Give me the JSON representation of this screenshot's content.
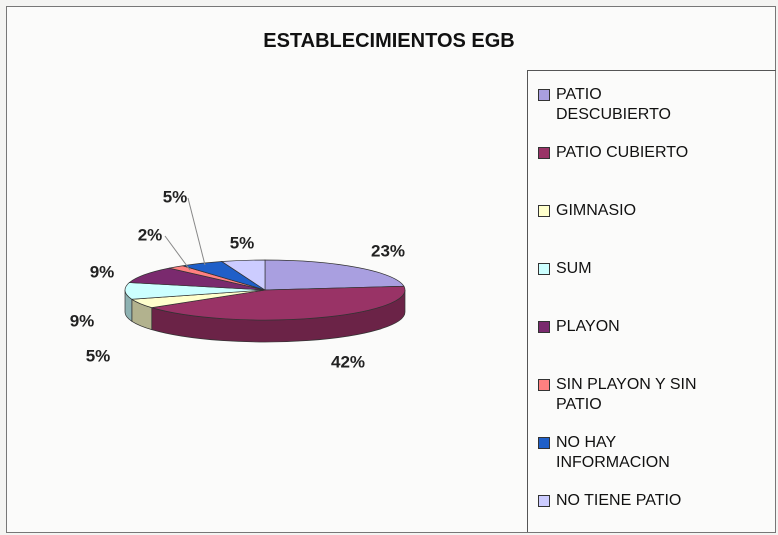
{
  "chart_data": {
    "type": "pie3d",
    "title": "ESTABLECIMIENTOS EGB",
    "categories": [
      "PATIO DESCUBIERTO",
      "PATIO CUBIERTO",
      "GIMNASIO",
      "SUM",
      "PLAYON",
      "SIN PLAYON Y SIN PATIO",
      "NO HAY INFORMACION",
      "NO TIENE PATIO"
    ],
    "values": [
      23,
      42,
      5,
      9,
      9,
      2,
      5,
      5
    ],
    "value_labels": [
      "23%",
      "42%",
      "5%",
      "9%",
      "9%",
      "2%",
      "5%",
      "5%"
    ],
    "colors": [
      "#a99fe0",
      "#993366",
      "#ffffcc",
      "#ccffff",
      "#7a2a6e",
      "#ff8080",
      "#1f5fc8",
      "#ccccff"
    ],
    "legend": "right"
  }
}
